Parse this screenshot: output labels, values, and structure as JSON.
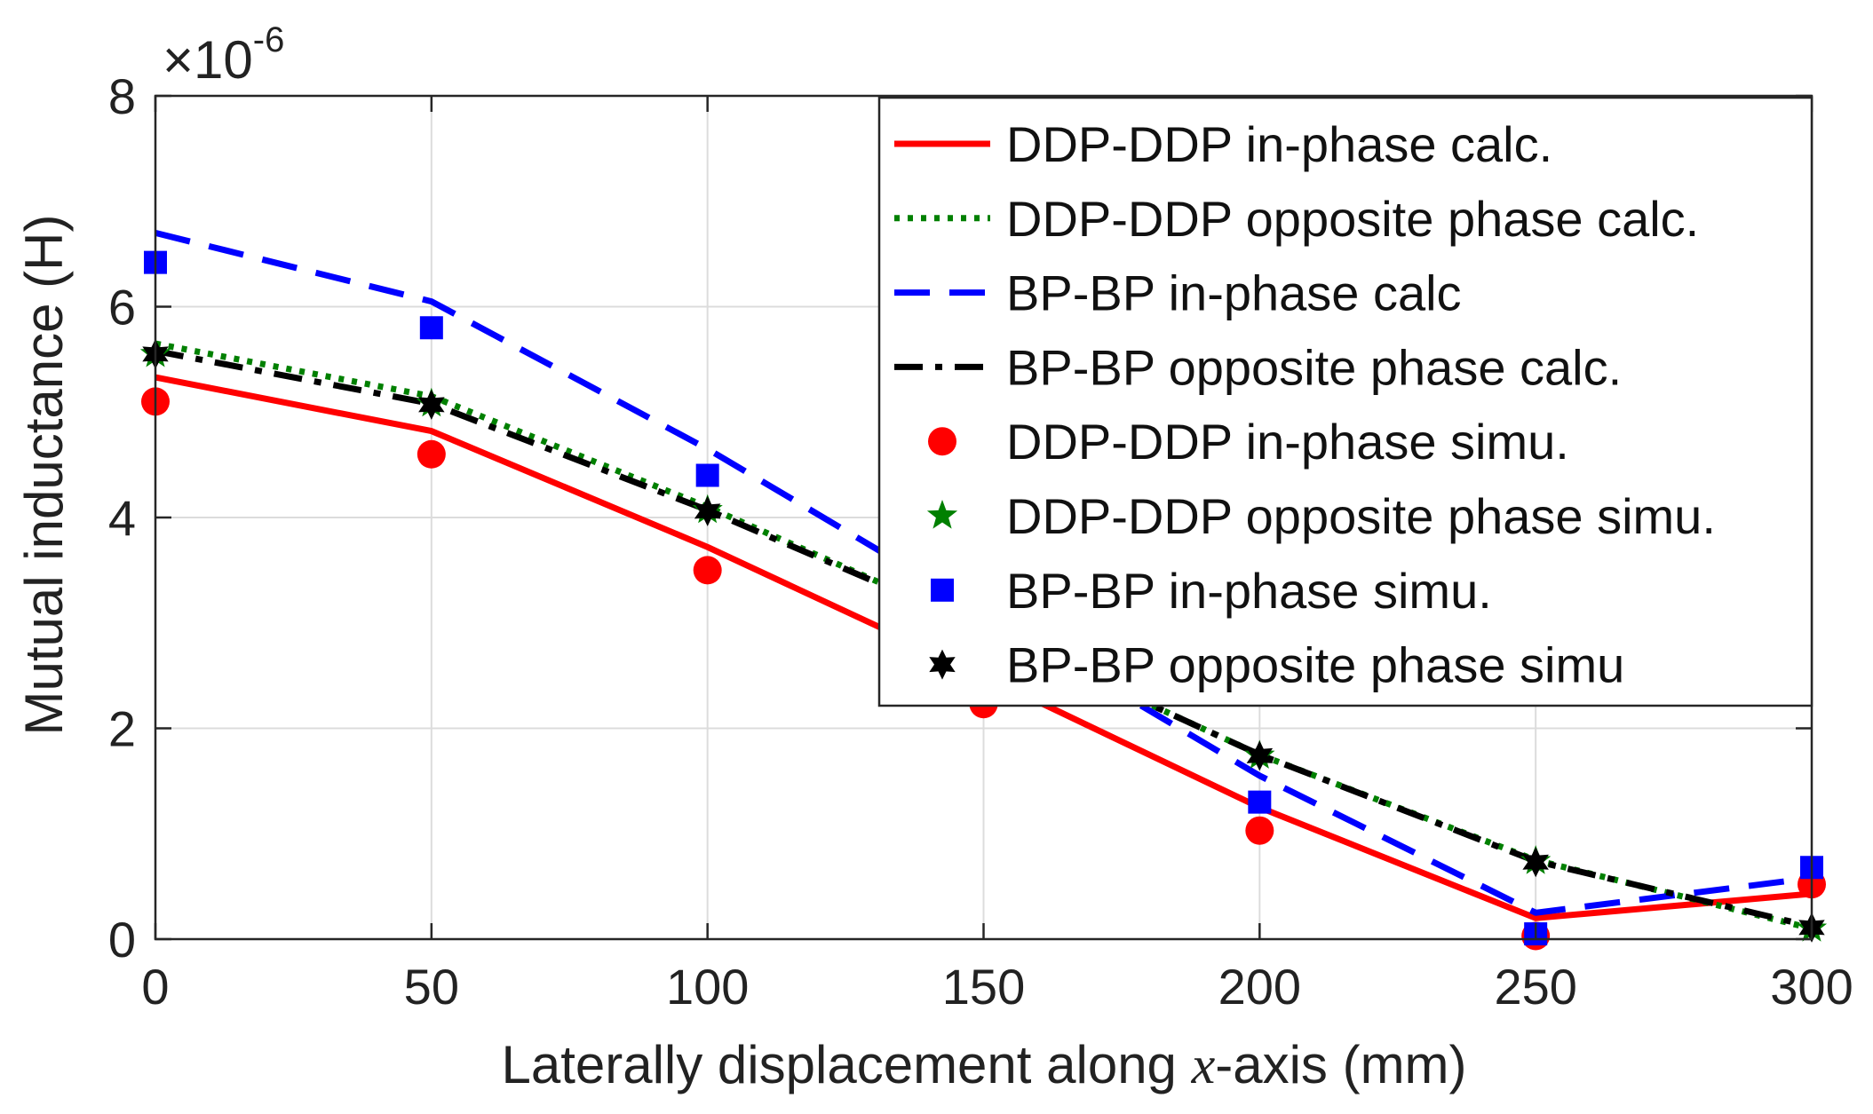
{
  "chart_data": {
    "type": "line",
    "xlabel_prefix": "Laterally displacement along ",
    "xlabel_var": "x",
    "xlabel_suffix": "-axis (mm)",
    "ylabel": "Mutual inductance (H)",
    "y_exponent_base": "×10",
    "y_exponent_power": "-6",
    "xlim": [
      0,
      300
    ],
    "ylim": [
      0,
      8
    ],
    "xticks": [
      0,
      50,
      100,
      150,
      200,
      250,
      300
    ],
    "yticks": [
      0,
      2,
      4,
      6,
      8
    ],
    "grid": true,
    "legend_position": "top-right",
    "x": [
      0,
      50,
      100,
      150,
      200,
      250,
      300
    ],
    "series": [
      {
        "name": "DDP-DDP  in-phase calc.",
        "kind": "line",
        "style": "solid",
        "color": "#ff0000",
        "values": [
          5.33,
          4.82,
          3.72,
          2.5,
          1.25,
          0.2,
          0.43
        ]
      },
      {
        "name": "DDP-DDP opposite phase calc.",
        "kind": "line",
        "style": "dotted",
        "color": "#008000",
        "values": [
          5.65,
          5.15,
          4.1,
          2.95,
          1.75,
          0.75,
          0.1
        ]
      },
      {
        "name": "BP-BP  in-phase calc",
        "kind": "line",
        "style": "dashed",
        "color": "#0000ff",
        "values": [
          6.7,
          6.05,
          4.65,
          3.1,
          1.55,
          0.25,
          0.58
        ]
      },
      {
        "name": "BP-BP opposite phase calc.",
        "kind": "line",
        "style": "dashdot",
        "color": "#000000",
        "values": [
          5.58,
          5.08,
          4.07,
          2.95,
          1.75,
          0.74,
          0.12
        ]
      },
      {
        "name": "DDP-DDP in-phase simu.",
        "kind": "marker",
        "marker": "circle",
        "color": "#ff0000",
        "values": [
          5.1,
          4.6,
          3.5,
          2.23,
          1.03,
          0.03,
          0.52
        ]
      },
      {
        "name": "DDP-DDP opposite phase simu.",
        "kind": "marker",
        "marker": "star5",
        "color": "#008000",
        "values": [
          5.55,
          5.08,
          4.07,
          2.95,
          1.74,
          0.74,
          0.1
        ]
      },
      {
        "name": "BP-BP in-phase simu.",
        "kind": "marker",
        "marker": "square",
        "color": "#0000ff",
        "values": [
          6.42,
          5.8,
          4.4,
          2.85,
          1.3,
          0.05,
          0.68
        ]
      },
      {
        "name": "BP-BP opposite phase simu",
        "kind": "marker",
        "marker": "star6",
        "color": "#000000",
        "values": [
          5.55,
          5.07,
          4.06,
          2.94,
          1.74,
          0.73,
          0.11
        ]
      }
    ]
  }
}
